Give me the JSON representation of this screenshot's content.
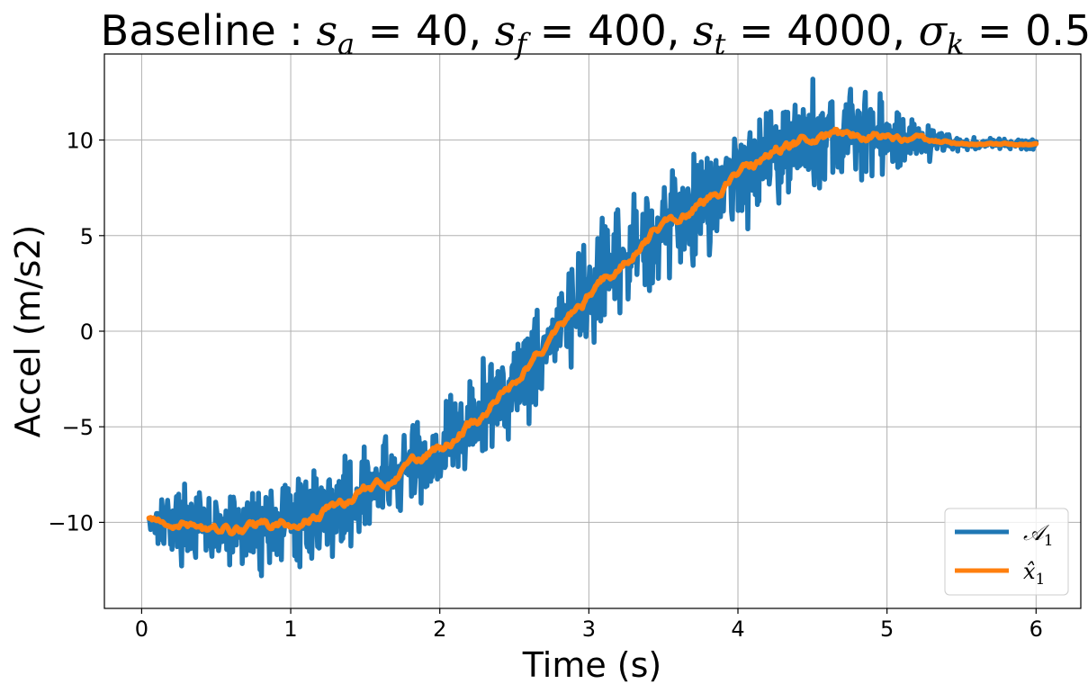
{
  "chart_data": {
    "type": "line",
    "title": {
      "prefix": "Baseline",
      "parts": [
        {
          "base": "s",
          "sub": "a",
          "rest": " = 40, "
        },
        {
          "base": "s",
          "sub": "f",
          "rest": " = 400, "
        },
        {
          "base": "s",
          "sub": "t",
          "rest": " = 4000, "
        },
        {
          "base": "σ",
          "sub": "k",
          "rest": " = 0.5"
        }
      ]
    },
    "xlabel": "Time (s)",
    "ylabel": "Accel (m/s2)",
    "xlim": [
      -0.25,
      6.3
    ],
    "ylim": [
      -14.5,
      14.5
    ],
    "xticks": [
      0,
      1,
      2,
      3,
      4,
      5,
      6
    ],
    "xtick_labels": [
      "0",
      "1",
      "2",
      "3",
      "4",
      "5",
      "6"
    ],
    "yticks": [
      -10,
      -5,
      0,
      5,
      10
    ],
    "ytick_labels": [
      "−10",
      "−5",
      "0",
      "5",
      "10"
    ],
    "grid": true,
    "legend_position": "lower-right",
    "colors": {
      "series_1": "#1f77b4",
      "series_2": "#ff7f0e",
      "grid": "#b0b0b0"
    },
    "series": [
      {
        "name": "𝒜",
        "name_sub": "1",
        "x": [
          0.05,
          0.25,
          0.5,
          0.75,
          1.0,
          1.25,
          1.5,
          1.75,
          2.0,
          2.25,
          2.5,
          2.75,
          3.0,
          3.25,
          3.5,
          3.75,
          4.0,
          4.25,
          4.5,
          4.75,
          5.0,
          5.25,
          5.5,
          6.0
        ],
        "y": [
          -9.8,
          -10.0,
          -10.5,
          -10.3,
          -10.0,
          -9.4,
          -8.4,
          -7.4,
          -6.2,
          -4.6,
          -2.6,
          -0.4,
          1.8,
          3.8,
          5.6,
          6.7,
          8.2,
          9.5,
          10.1,
          10.3,
          10.1,
          10.0,
          9.8,
          9.8
        ],
        "noise_amplitude": [
          0.9,
          1.2,
          1.4,
          1.5,
          1.6,
          1.6,
          1.6,
          1.7,
          1.7,
          1.8,
          1.9,
          1.9,
          1.9,
          1.9,
          1.9,
          1.9,
          1.9,
          1.9,
          1.8,
          1.7,
          1.5,
          0.7,
          0.2,
          0.2
        ]
      },
      {
        "name": "x̂",
        "name_sub": "1",
        "x": [
          0.05,
          0.25,
          0.5,
          0.75,
          1.0,
          1.25,
          1.5,
          1.75,
          2.0,
          2.25,
          2.5,
          2.75,
          3.0,
          3.25,
          3.5,
          3.75,
          4.0,
          4.25,
          4.5,
          4.75,
          5.0,
          5.25,
          5.5,
          6.0
        ],
        "y": [
          -9.8,
          -10.0,
          -10.5,
          -10.3,
          -10.0,
          -9.4,
          -8.4,
          -7.4,
          -6.2,
          -4.6,
          -2.6,
          -0.4,
          1.8,
          3.8,
          5.6,
          6.7,
          8.2,
          9.5,
          10.1,
          10.3,
          10.1,
          10.0,
          9.8,
          9.8
        ],
        "noise_amplitude": [
          0.15,
          0.25,
          0.3,
          0.3,
          0.3,
          0.3,
          0.3,
          0.3,
          0.3,
          0.3,
          0.3,
          0.3,
          0.3,
          0.3,
          0.3,
          0.3,
          0.3,
          0.3,
          0.3,
          0.3,
          0.25,
          0.15,
          0.05,
          0.05
        ]
      }
    ]
  }
}
